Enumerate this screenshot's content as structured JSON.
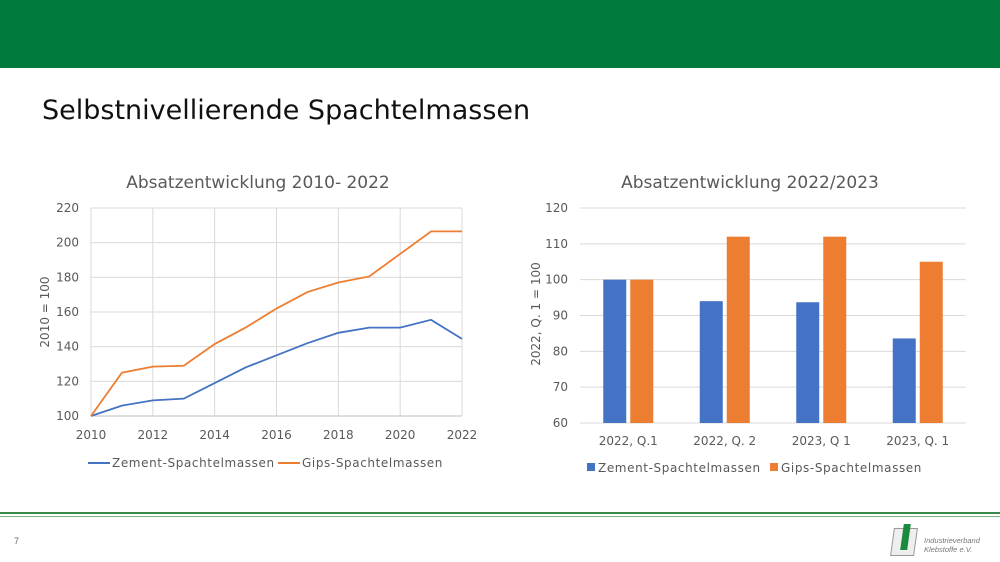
{
  "page": {
    "title": "Selbstnivellierende Spachtelmassen",
    "page_number": "7",
    "logo_text": [
      "Industrieverband",
      "Klebstoffe e.V."
    ]
  },
  "chart_data": [
    {
      "type": "line",
      "title": "Absatzentwicklung 2010- 2022",
      "xlabel": "",
      "ylabel": "2010 = 100",
      "ylim": [
        100,
        220
      ],
      "yticks": [
        100,
        120,
        140,
        160,
        180,
        200,
        220
      ],
      "xticks": [
        2010,
        2012,
        2014,
        2016,
        2018,
        2020,
        2022
      ],
      "grid": true,
      "legend": "bottom",
      "x": [
        2010,
        2011,
        2012,
        2013,
        2014,
        2015,
        2016,
        2017,
        2018,
        2019,
        2020,
        2021,
        2022
      ],
      "series": [
        {
          "name": "Zement-Spachtelmassen",
          "color": "#4472c4",
          "values": [
            100,
            106,
            109,
            110,
            119,
            128,
            135,
            142,
            148,
            151,
            151,
            155.5,
            144.5
          ]
        },
        {
          "name": "Gips-Spachtelmassen",
          "color": "#ed7d31",
          "values": [
            100,
            125,
            128.5,
            129,
            141.5,
            151,
            162,
            171.5,
            177,
            180.5,
            193.5,
            206.5,
            206.5
          ]
        }
      ]
    },
    {
      "type": "bar",
      "title": "Absatzentwicklung 2022/2023",
      "xlabel": "",
      "ylabel": "2022, Q. 1 = 100",
      "ylim": [
        60,
        120
      ],
      "yticks": [
        60,
        70,
        80,
        90,
        100,
        110,
        120
      ],
      "grid": true,
      "legend": "bottom",
      "categories": [
        "2022, Q.1",
        "2022, Q. 2",
        "2023, Q 1",
        "2023, Q. 1"
      ],
      "series": [
        {
          "name": "Zement-Spachtelmassen",
          "color": "#4472c4",
          "values": [
            100,
            94,
            93.7,
            83.6
          ]
        },
        {
          "name": "Gips-Spachtelmassen",
          "color": "#ed7d31",
          "values": [
            100,
            112,
            112,
            105
          ]
        }
      ]
    }
  ]
}
